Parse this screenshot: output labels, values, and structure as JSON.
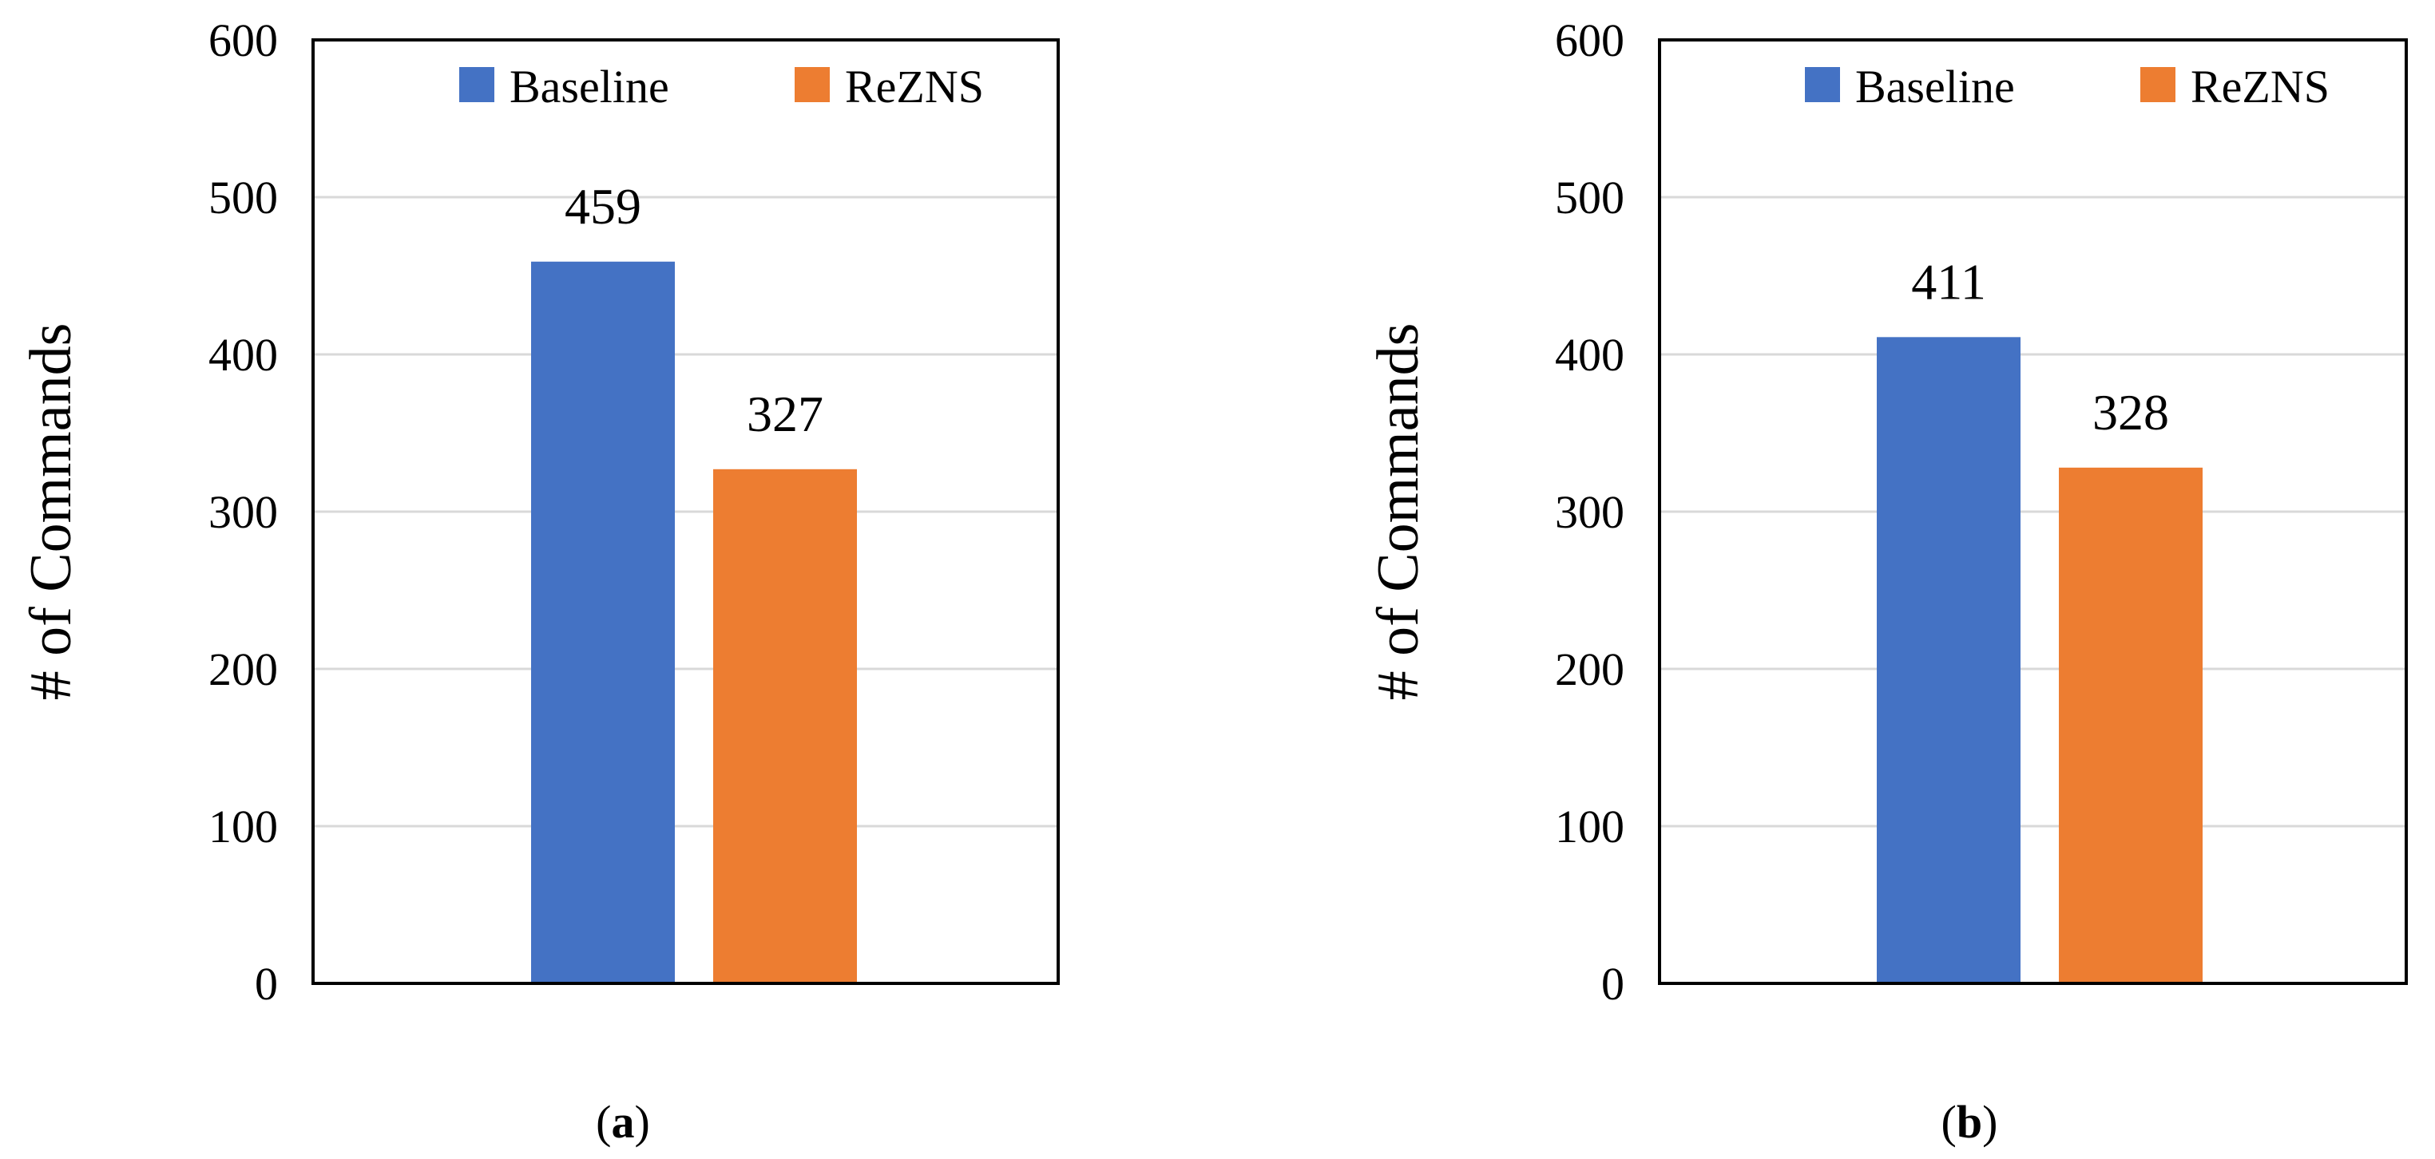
{
  "chart_data": [
    {
      "type": "bar",
      "categories": [
        ""
      ],
      "series": [
        {
          "name": "Baseline",
          "values": [
            459
          ],
          "color": "#4472C4"
        },
        {
          "name": "ReZNS",
          "values": [
            327
          ],
          "color": "#ED7D31"
        }
      ],
      "ylabel": "# of Commands",
      "ylim": [
        0,
        600
      ],
      "yticks": [
        0,
        100,
        200,
        300,
        400,
        500,
        600
      ],
      "grid": true,
      "legend": "top",
      "panel_label": {
        "open": "(",
        "letter": "a",
        "close": ")"
      }
    },
    {
      "type": "bar",
      "categories": [
        ""
      ],
      "series": [
        {
          "name": "Baseline",
          "values": [
            411
          ],
          "color": "#4472C4"
        },
        {
          "name": "ReZNS",
          "values": [
            328
          ],
          "color": "#ED7D31"
        }
      ],
      "ylabel": "# of Commands",
      "ylim": [
        0,
        600
      ],
      "yticks": [
        0,
        100,
        200,
        300,
        400,
        500,
        600
      ],
      "grid": true,
      "legend": "top",
      "panel_label": {
        "open": "(",
        "letter": "b",
        "close": ")"
      }
    }
  ]
}
